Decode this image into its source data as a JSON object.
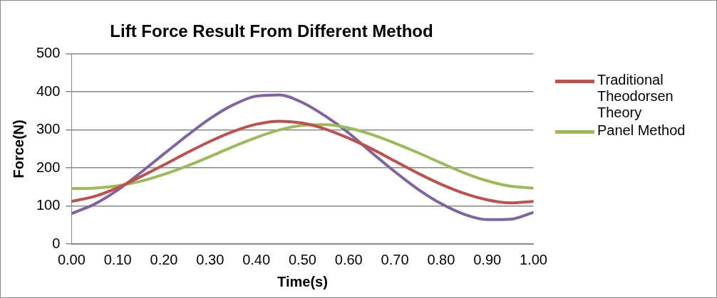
{
  "chart_data": {
    "type": "line",
    "title": "Lift Force Result From Different Method",
    "xlabel": "Time(s)",
    "ylabel": "Force(N)",
    "x": [
      0,
      0.05,
      0.1,
      0.15,
      0.2,
      0.25,
      0.3,
      0.35,
      0.4,
      0.45,
      0.5,
      0.55,
      0.6,
      0.65,
      0.7,
      0.75,
      0.8,
      0.85,
      0.9,
      0.95,
      1.0
    ],
    "series": [
      {
        "name": "Traditional Theodorsen Theory",
        "color": "#c0504d",
        "values": [
          112,
          125,
          148,
          177,
          208,
          240,
          270,
          296,
          315,
          323,
          318,
          302,
          278,
          250,
          218,
          186,
          157,
          133,
          116,
          108,
          112
        ]
      },
      {
        "name": "Panel Method",
        "color": "#9bbb59",
        "values": [
          146,
          147,
          153,
          165,
          183,
          205,
          230,
          256,
          280,
          300,
          312,
          314,
          305,
          288,
          265,
          240,
          213,
          187,
          166,
          152,
          147
        ]
      },
      {
        "color": "#8064a2",
        "values": [
          80,
          105,
          142,
          188,
          237,
          285,
          330,
          366,
          389,
          392,
          372,
          336,
          292,
          240,
          190,
          144,
          106,
          78,
          64,
          65,
          83
        ]
      }
    ],
    "xlim": [
      0,
      1
    ],
    "xticks": [
      {
        "value": 0,
        "label": "0.00"
      },
      {
        "value": 0.1,
        "label": "0.10"
      },
      {
        "value": 0.2,
        "label": "0.20"
      },
      {
        "value": 0.3,
        "label": "0.30"
      },
      {
        "value": 0.4,
        "label": "0.40"
      },
      {
        "value": 0.5,
        "label": "0.50"
      },
      {
        "value": 0.6,
        "label": "0.60"
      },
      {
        "value": 0.7,
        "label": "0.70"
      },
      {
        "value": 0.8,
        "label": "0.80"
      },
      {
        "value": 0.9,
        "label": "0.90"
      },
      {
        "value": 1,
        "label": "1.00"
      }
    ],
    "ylim": [
      0,
      500
    ],
    "yticks": [
      0,
      100,
      200,
      300,
      400,
      500
    ],
    "grid": "y",
    "legend": "right",
    "marker": "none",
    "line_style": "solid"
  }
}
